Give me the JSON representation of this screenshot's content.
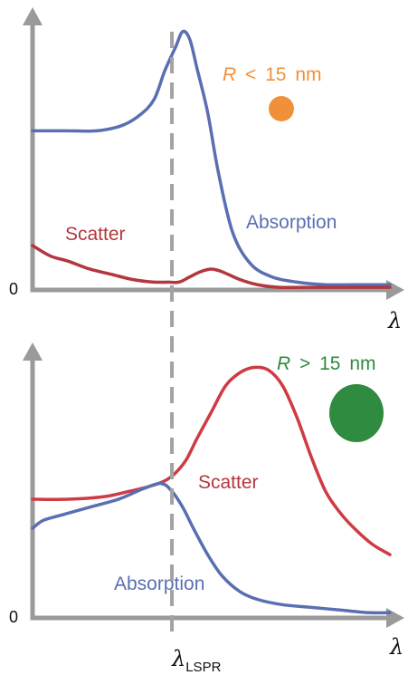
{
  "chart_data": [
    {
      "type": "line",
      "title": "",
      "xlabel": "λ",
      "ylabel": "",
      "y_zero_label": "0",
      "xlim": [
        0,
        100
      ],
      "ylim": [
        0,
        100
      ],
      "particle_label": {
        "variable": "R",
        "relation": "<",
        "value": "15",
        "unit": "nm"
      },
      "particle_color": "#f0913a",
      "lspr_x": 39,
      "series": [
        {
          "name": "Absorption",
          "color": "#5a6fb2",
          "x": [
            0,
            9,
            18,
            25,
            30,
            34,
            37,
            40,
            42,
            44,
            46,
            49,
            52,
            56,
            61,
            67,
            74,
            82,
            90,
            100
          ],
          "y": [
            61,
            61,
            61,
            63,
            67,
            73,
            84,
            93,
            99,
            96,
            85,
            68,
            45,
            22,
            10,
            5,
            3,
            2,
            2,
            2
          ]
        },
        {
          "name": "Scatter",
          "color": "#b3373f",
          "x": [
            0,
            5,
            10,
            16,
            22,
            28,
            34,
            38,
            41,
            44,
            47,
            50,
            53,
            58,
            63,
            69,
            76,
            84,
            92,
            100
          ],
          "y": [
            17,
            13,
            11,
            8,
            6,
            4,
            3,
            3,
            3,
            5,
            7,
            8,
            7,
            4,
            2,
            1,
            1,
            1,
            1,
            1
          ]
        }
      ],
      "annotations": [
        {
          "text": "Scatter",
          "color": "#b3373f"
        },
        {
          "text": "Absorption",
          "color": "#5a6fb2"
        }
      ]
    },
    {
      "type": "line",
      "title": "",
      "xlabel": "λ",
      "ylabel": "",
      "y_zero_label": "0",
      "xlim": [
        0,
        100
      ],
      "ylim": [
        0,
        100
      ],
      "particle_label": {
        "variable": "R",
        "relation": ">",
        "value": "15",
        "unit": "nm"
      },
      "particle_color": "#2f8b3f",
      "lspr_x": 39,
      "lspr_label": "λ",
      "lspr_subscript": "LSPR",
      "series": [
        {
          "name": "Scatter",
          "color": "#cf3b43",
          "x": [
            0,
            10,
            20,
            27,
            33,
            37,
            40,
            43,
            46,
            50,
            54,
            58,
            62,
            66,
            70,
            74,
            78,
            82,
            86,
            90,
            95,
            100
          ],
          "y": [
            45,
            45,
            46,
            48,
            50,
            52,
            55,
            60,
            68,
            78,
            88,
            93,
            95,
            94,
            88,
            76,
            61,
            48,
            40,
            34,
            28,
            24
          ]
        },
        {
          "name": "Absorption",
          "color": "#5a6fb2",
          "x": [
            0,
            3,
            8,
            16,
            24,
            31,
            36,
            39,
            42,
            45,
            49,
            53,
            58,
            63,
            70,
            78,
            86,
            94,
            100
          ],
          "y": [
            34,
            37,
            39,
            42,
            45,
            49,
            51,
            48,
            42,
            34,
            24,
            16,
            10,
            7,
            5,
            4,
            3,
            2,
            2
          ]
        }
      ],
      "annotations": [
        {
          "text": "Scatter",
          "color": "#b3373f"
        },
        {
          "text": "Absorption",
          "color": "#5a6fb2"
        }
      ]
    }
  ]
}
